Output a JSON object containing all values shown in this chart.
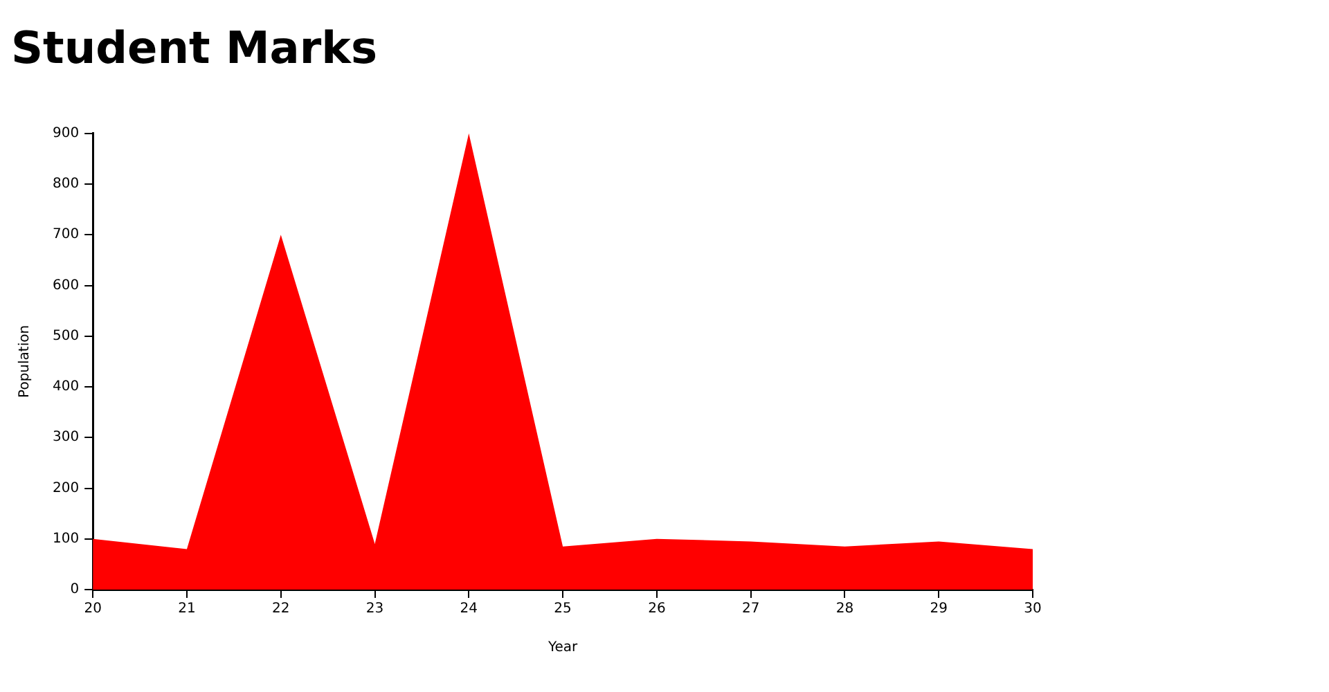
{
  "chart_data": {
    "type": "area",
    "title": "Student Marks",
    "xlabel": "Year",
    "ylabel": "Population",
    "x": [
      20,
      21,
      22,
      23,
      24,
      25,
      26,
      27,
      28,
      29,
      30
    ],
    "series": [
      {
        "color": "#ff0000",
        "values": [
          100,
          80,
          700,
          90,
          900,
          85,
          100,
          95,
          85,
          95,
          80
        ]
      }
    ],
    "xlim": [
      20,
      30
    ],
    "xticks": [
      20,
      21,
      22,
      23,
      24,
      25,
      26,
      27,
      28,
      29,
      30
    ],
    "ylim": [
      0,
      900
    ],
    "yticks": [
      0,
      100,
      200,
      300,
      400,
      500,
      600,
      700,
      800,
      900
    ],
    "grid": false,
    "legend": false
  }
}
